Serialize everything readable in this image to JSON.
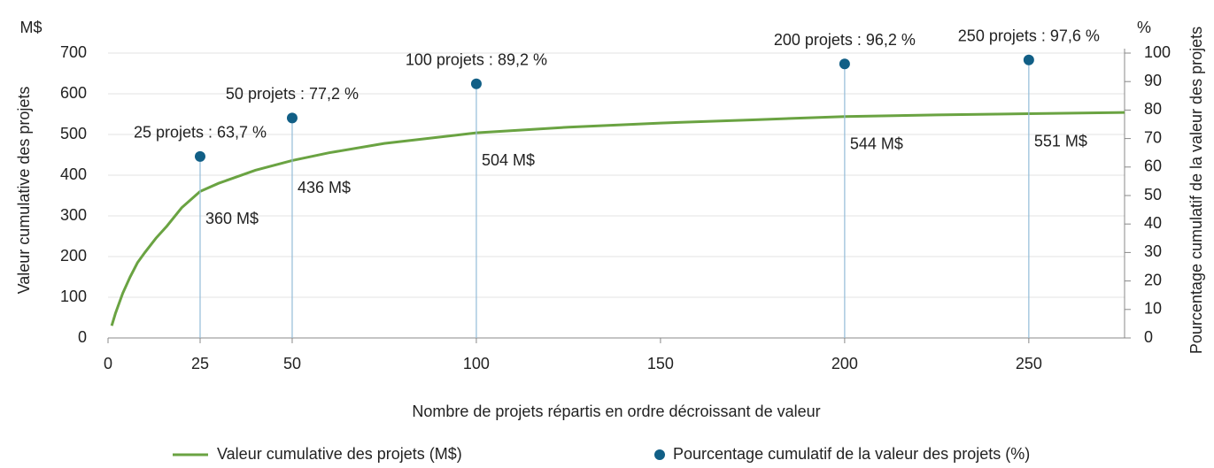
{
  "chart_data": {
    "type": "line",
    "x_label": "Nombre de projets répartis en ordre décroissant de valeur",
    "y_label": "Valeur cumulative des projets",
    "y2_label": "Pourcentage cumulatif de la valeur des projets",
    "y_unit": "M$",
    "y2_unit": "%",
    "xlim": [
      0,
      276
    ],
    "xticks": [
      0,
      25,
      50,
      100,
      150,
      200,
      250
    ],
    "ylim": [
      0,
      700
    ],
    "yticks": [
      0,
      100,
      200,
      300,
      400,
      500,
      600,
      700
    ],
    "y2lim": [
      0,
      100
    ],
    "y2ticks": [
      0,
      10,
      20,
      30,
      40,
      50,
      60,
      70,
      80,
      90,
      100
    ],
    "grid": true,
    "series": [
      {
        "name": "Valeur cumulative des projets  (M$)",
        "color": "#6aa342",
        "type": "line",
        "x": [
          1,
          2,
          4,
          6,
          8,
          10,
          13,
          16,
          20,
          25,
          30,
          40,
          50,
          60,
          75,
          100,
          125,
          150,
          175,
          200,
          225,
          250,
          276
        ],
        "values": [
          30,
          60,
          110,
          150,
          185,
          210,
          245,
          275,
          320,
          360,
          380,
          412,
          436,
          455,
          478,
          504,
          518,
          528,
          536,
          544,
          548,
          551,
          554
        ]
      },
      {
        "name": "Pourcentage cumulatif de la valeur des projets (%)",
        "color": "#115f86",
        "type": "scatter",
        "axis": "y2",
        "x": [
          25,
          50,
          100,
          200,
          250
        ],
        "values": [
          63.7,
          77.2,
          89.2,
          96.2,
          97.6
        ],
        "value_labels": [
          "25 projets : 63,7 %",
          "50 projets : 77,2 %",
          "100 projets : 89,2 %",
          "200 projets : 96,2 %",
          "250 projets : 97,6 %"
        ]
      }
    ],
    "annotations": [
      {
        "x": 25,
        "y": 360,
        "text": "360 M$"
      },
      {
        "x": 50,
        "y": 436,
        "text": "436 M$"
      },
      {
        "x": 100,
        "y": 504,
        "text": "504 M$"
      },
      {
        "x": 200,
        "y": 544,
        "text": "544 M$"
      },
      {
        "x": 250,
        "y": 551,
        "text": "551 M$"
      }
    ]
  }
}
